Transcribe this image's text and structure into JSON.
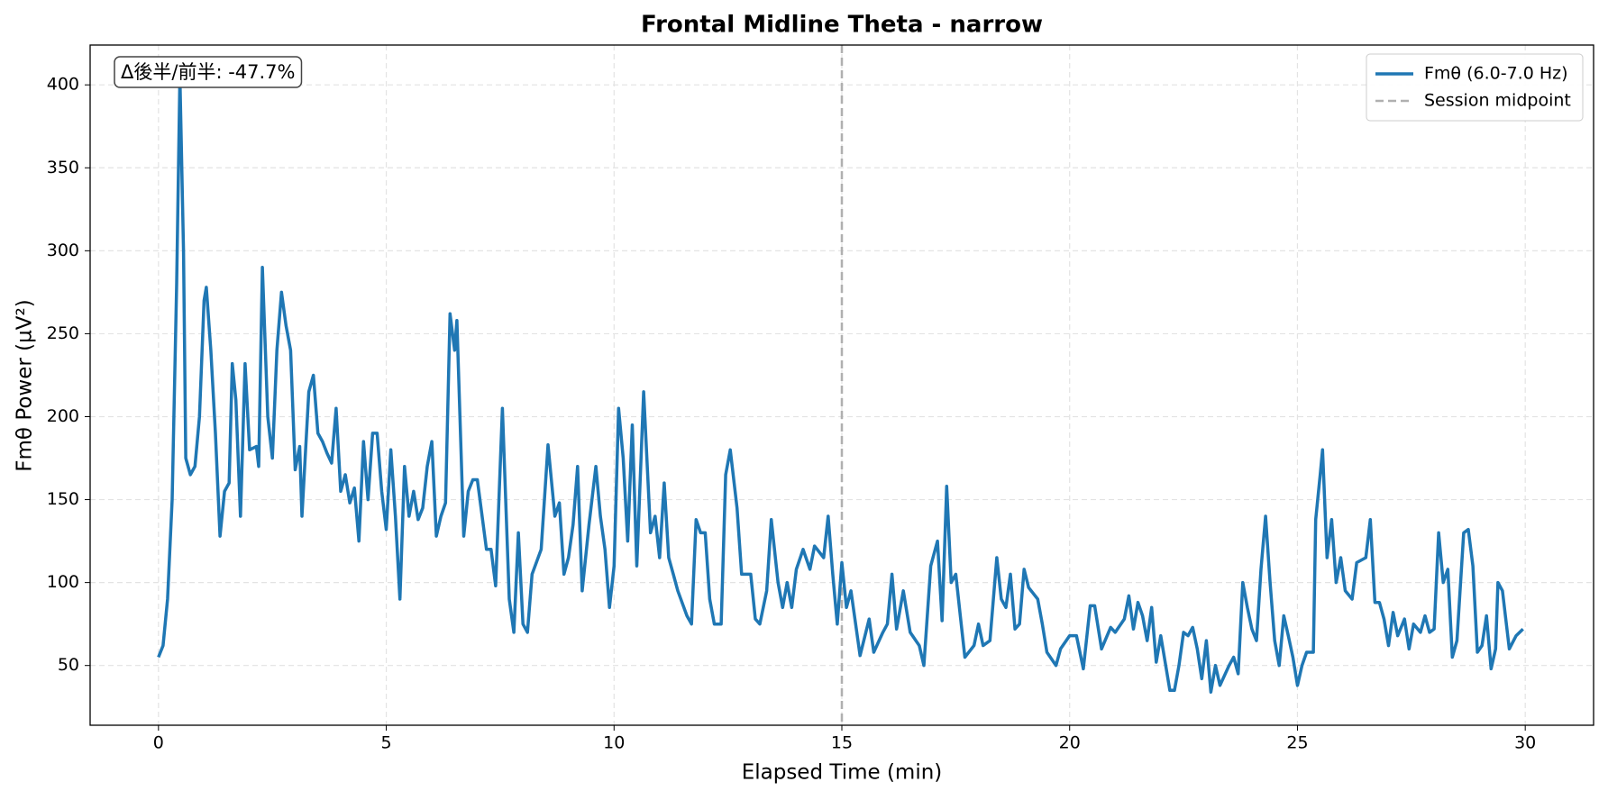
{
  "chart_data": {
    "type": "line",
    "title": "Frontal Midline Theta - narrow",
    "x_label": "Elapsed Time (min)",
    "y_label": "Fmθ Power (µV²)",
    "annotation": "Δ後半/前半: -47.7%",
    "xlim": [
      -1.5,
      31.5
    ],
    "ylim": [
      14,
      424
    ],
    "xticks": [
      0,
      5,
      10,
      15,
      20,
      25,
      30
    ],
    "yticks": [
      50,
      100,
      150,
      200,
      250,
      300,
      350,
      400
    ],
    "grid": true,
    "legend": "upper right",
    "series": [
      {
        "name": "Fmθ (6.0-7.0 Hz)",
        "color": "#1f77b4",
        "x": [
          0,
          0.1,
          0.2,
          0.3,
          0.4,
          0.47,
          0.55,
          0.6,
          0.7,
          0.8,
          0.9,
          1.0,
          1.05,
          1.15,
          1.25,
          1.35,
          1.45,
          1.55,
          1.62,
          1.7,
          1.8,
          1.9,
          2.0,
          2.15,
          2.2,
          2.28,
          2.4,
          2.5,
          2.6,
          2.7,
          2.8,
          2.9,
          3.0,
          3.1,
          3.15,
          3.3,
          3.4,
          3.5,
          3.6,
          3.7,
          3.8,
          3.9,
          4.0,
          4.1,
          4.2,
          4.3,
          4.4,
          4.5,
          4.6,
          4.7,
          4.8,
          4.9,
          5.0,
          5.1,
          5.2,
          5.3,
          5.4,
          5.5,
          5.6,
          5.7,
          5.8,
          5.9,
          6.0,
          6.1,
          6.2,
          6.3,
          6.4,
          6.5,
          6.55,
          6.7,
          6.8,
          6.9,
          7.0,
          7.2,
          7.3,
          7.4,
          7.55,
          7.7,
          7.8,
          7.9,
          8.0,
          8.1,
          8.2,
          8.4,
          8.55,
          8.7,
          8.8,
          8.9,
          9.0,
          9.1,
          9.2,
          9.3,
          9.45,
          9.6,
          9.7,
          9.8,
          9.9,
          10.0,
          10.1,
          10.2,
          10.3,
          10.4,
          10.5,
          10.65,
          10.8,
          10.9,
          11.0,
          11.1,
          11.2,
          11.3,
          11.4,
          11.6,
          11.7,
          11.8,
          11.9,
          12.0,
          12.1,
          12.2,
          12.35,
          12.45,
          12.55,
          12.7,
          12.8,
          13.0,
          13.1,
          13.2,
          13.35,
          13.45,
          13.6,
          13.7,
          13.8,
          13.9,
          14.0,
          14.15,
          14.3,
          14.4,
          14.6,
          14.7,
          14.8,
          14.9,
          15.0,
          15.1,
          15.2,
          15.4,
          15.6,
          15.7,
          15.9,
          16.0,
          16.1,
          16.2,
          16.35,
          16.5,
          16.7,
          16.8,
          16.95,
          17.1,
          17.2,
          17.3,
          17.4,
          17.5,
          17.6,
          17.7,
          17.9,
          18.0,
          18.1,
          18.25,
          18.4,
          18.5,
          18.6,
          18.7,
          18.8,
          18.9,
          19.0,
          19.1,
          19.3,
          19.4,
          19.5,
          19.7,
          19.8,
          20.0,
          20.15,
          20.3,
          20.45,
          20.55,
          20.7,
          20.9,
          21.0,
          21.2,
          21.3,
          21.4,
          21.5,
          21.6,
          21.7,
          21.8,
          21.9,
          22.0,
          22.2,
          22.3,
          22.4,
          22.5,
          22.6,
          22.7,
          22.8,
          22.9,
          23.0,
          23.1,
          23.2,
          23.3,
          23.5,
          23.6,
          23.7,
          23.8,
          23.9,
          24.0,
          24.1,
          24.2,
          24.3,
          24.4,
          24.5,
          24.6,
          24.7,
          24.8,
          24.9,
          25.0,
          25.1,
          25.2,
          25.35,
          25.4,
          25.5,
          25.55,
          25.65,
          25.75,
          25.85,
          25.95,
          26.05,
          26.2,
          26.3,
          26.5,
          26.6,
          26.7,
          26.8,
          26.9,
          27.0,
          27.1,
          27.2,
          27.35,
          27.45,
          27.55,
          27.7,
          27.8,
          27.9,
          28.0,
          28.1,
          28.2,
          28.3,
          28.4,
          28.5,
          28.65,
          28.75,
          28.85,
          28.95,
          29.05,
          29.15,
          29.25,
          29.35,
          29.4,
          29.5,
          29.65,
          29.8,
          29.95
        ],
        "values": [
          55,
          62,
          90,
          150,
          280,
          405,
          300,
          175,
          165,
          170,
          200,
          270,
          278,
          240,
          190,
          128,
          155,
          160,
          232,
          210,
          140,
          232,
          180,
          182,
          170,
          290,
          200,
          175,
          240,
          275,
          255,
          240,
          168,
          182,
          140,
          215,
          225,
          190,
          185,
          178,
          172,
          205,
          155,
          165,
          148,
          157,
          125,
          185,
          150,
          190,
          190,
          155,
          132,
          180,
          140,
          90,
          170,
          140,
          155,
          138,
          145,
          170,
          185,
          128,
          140,
          148,
          262,
          240,
          258,
          128,
          155,
          162,
          162,
          120,
          120,
          98,
          205,
          90,
          70,
          130,
          75,
          70,
          105,
          120,
          183,
          140,
          148,
          105,
          115,
          135,
          170,
          95,
          135,
          170,
          140,
          120,
          85,
          110,
          205,
          175,
          125,
          195,
          110,
          215,
          130,
          140,
          115,
          160,
          115,
          105,
          95,
          80,
          75,
          138,
          130,
          130,
          90,
          75,
          75,
          165,
          180,
          145,
          105,
          105,
          78,
          75,
          95,
          138,
          100,
          85,
          100,
          85,
          108,
          120,
          108,
          122,
          115,
          140,
          105,
          75,
          112,
          85,
          95,
          56,
          78,
          58,
          70,
          75,
          105,
          72,
          95,
          70,
          62,
          50,
          110,
          125,
          77,
          158,
          100,
          105,
          80,
          55,
          62,
          75,
          62,
          65,
          115,
          90,
          85,
          105,
          72,
          75,
          108,
          97,
          90,
          75,
          58,
          50,
          60,
          68,
          68,
          48,
          86,
          86,
          60,
          73,
          70,
          78,
          92,
          72,
          88,
          80,
          65,
          85,
          52,
          68,
          35,
          35,
          50,
          70,
          68,
          73,
          60,
          42,
          65,
          34,
          50,
          38,
          50,
          55,
          45,
          100,
          85,
          72,
          65,
          108,
          140,
          100,
          65,
          50,
          80,
          68,
          55,
          38,
          50,
          58,
          58,
          138,
          165,
          180,
          115,
          138,
          100,
          115,
          95,
          90,
          112,
          115,
          138,
          88,
          88,
          78,
          62,
          82,
          68,
          78,
          60,
          75,
          70,
          80,
          70,
          72,
          130,
          100,
          108,
          55,
          65,
          130,
          132,
          110,
          58,
          62,
          80,
          48,
          60,
          100,
          95,
          60,
          68,
          72
        ]
      }
    ],
    "vlines": [
      {
        "name": "Session midpoint",
        "x": 15,
        "color": "#b0b0b0"
      }
    ]
  }
}
